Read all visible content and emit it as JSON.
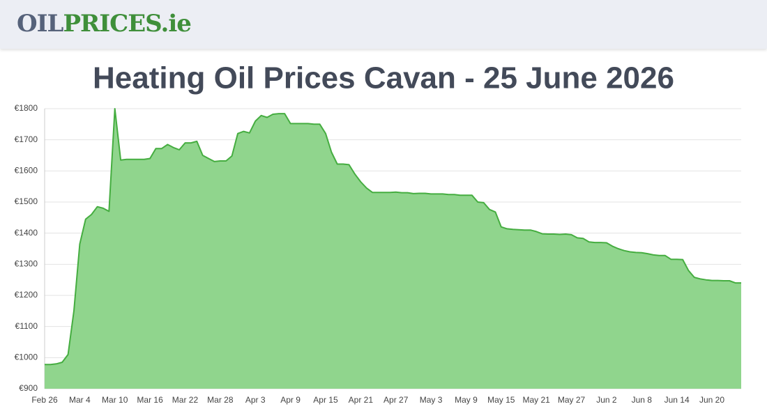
{
  "header": {
    "logo_part1": "OIL",
    "logo_part2": "PRICES.ie"
  },
  "chart_data": {
    "type": "area",
    "title": "Heating Oil Prices Cavan - 25 June 2026",
    "categories": [
      "Feb 26",
      null,
      null,
      null,
      null,
      null,
      "Mar 4",
      null,
      null,
      null,
      null,
      null,
      "Mar 10",
      null,
      null,
      null,
      null,
      null,
      "Mar 16",
      null,
      null,
      null,
      null,
      null,
      "Mar 22",
      null,
      null,
      null,
      null,
      null,
      "Mar 28",
      null,
      null,
      null,
      null,
      null,
      "Apr 3",
      null,
      null,
      null,
      null,
      null,
      "Apr 9",
      null,
      null,
      null,
      null,
      null,
      "Apr 15",
      null,
      null,
      null,
      null,
      null,
      "Apr 21",
      null,
      null,
      null,
      null,
      null,
      "Apr 27",
      null,
      null,
      null,
      null,
      null,
      "May 3",
      null,
      null,
      null,
      null,
      null,
      "May 9",
      null,
      null,
      null,
      null,
      null,
      "May 15",
      null,
      null,
      null,
      null,
      null,
      "May 21",
      null,
      null,
      null,
      null,
      null,
      "May 27",
      null,
      null,
      null,
      null,
      null,
      "Jun 2",
      null,
      null,
      null,
      null,
      null,
      "Jun 8",
      null,
      null,
      null,
      null,
      null,
      "Jun 14",
      null,
      null,
      null,
      null,
      null,
      "Jun 20",
      null,
      null,
      null,
      null,
      null
    ],
    "values": [
      978,
      978,
      980,
      985,
      1010,
      1150,
      1365,
      1445,
      1460,
      1485,
      1480,
      1470,
      1800,
      1635,
      1637,
      1637,
      1637,
      1637,
      1640,
      1672,
      1672,
      1685,
      1675,
      1668,
      1690,
      1690,
      1695,
      1650,
      1640,
      1630,
      1632,
      1632,
      1648,
      1720,
      1727,
      1722,
      1760,
      1778,
      1772,
      1782,
      1784,
      1784,
      1752,
      1752,
      1752,
      1752,
      1750,
      1750,
      1720,
      1660,
      1622,
      1622,
      1620,
      1590,
      1565,
      1545,
      1531,
      1531,
      1531,
      1531,
      1532,
      1530,
      1530,
      1527,
      1528,
      1528,
      1526,
      1526,
      1526,
      1524,
      1524,
      1522,
      1522,
      1522,
      1500,
      1498,
      1476,
      1468,
      1420,
      1414,
      1412,
      1411,
      1410,
      1410,
      1405,
      1398,
      1397,
      1397,
      1396,
      1397,
      1395,
      1385,
      1383,
      1372,
      1370,
      1370,
      1369,
      1358,
      1350,
      1344,
      1340,
      1338,
      1337,
      1334,
      1330,
      1328,
      1328,
      1316,
      1316,
      1315,
      1280,
      1258,
      1253,
      1250,
      1248,
      1248,
      1247,
      1247,
      1240,
      1240
    ],
    "color": "#90d58d",
    "line_color": "#45ad40",
    "ylim": [
      900,
      1800
    ],
    "yticks": [
      {
        "value": 900,
        "label": "€900"
      },
      {
        "value": 1000,
        "label": "€1000"
      },
      {
        "value": 1100,
        "label": "€1100"
      },
      {
        "value": 1200,
        "label": "€1200"
      },
      {
        "value": 1300,
        "label": "€1300"
      },
      {
        "value": 1400,
        "label": "€1400"
      },
      {
        "value": 1500,
        "label": "€1500"
      },
      {
        "value": 1600,
        "label": "€1600"
      },
      {
        "value": 1700,
        "label": "€1700"
      },
      {
        "value": 1800,
        "label": "€1800"
      }
    ],
    "grid": true
  }
}
